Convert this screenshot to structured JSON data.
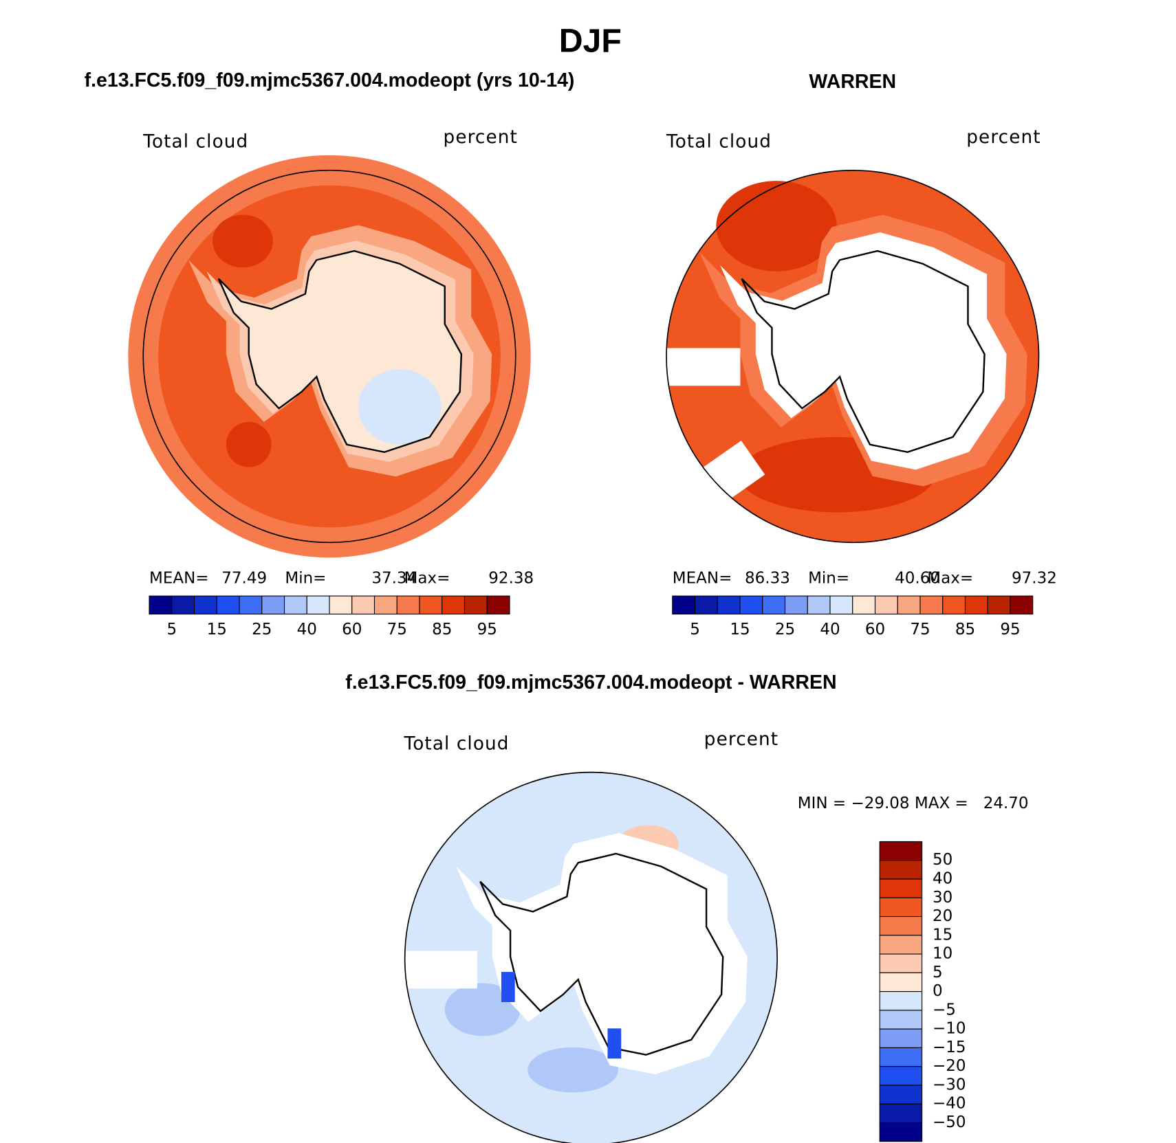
{
  "title": "DJF",
  "panels": [
    {
      "title": "f.e13.FC5.f09_f09.mjmc5367.004.modeopt (yrs 10-14)",
      "left_label": "Total cloud",
      "right_label": "percent",
      "stats": [
        {
          "label": "MEAN=",
          "value": "77.49"
        },
        {
          "label": "Min=",
          "value": "37.34"
        },
        {
          "label": "Max=",
          "value": "92.38"
        }
      ]
    },
    {
      "title": "WARREN",
      "left_label": "Total cloud",
      "right_label": "percent",
      "stats": [
        {
          "label": "MEAN=",
          "value": "86.33"
        },
        {
          "label": "Min=",
          "value": "40.60"
        },
        {
          "label": "Max=",
          "value": "97.32"
        }
      ]
    }
  ],
  "colorbar": {
    "colors": [
      "#00008b",
      "#0a1aa8",
      "#1033d0",
      "#1f4ff0",
      "#3d6ef5",
      "#7d9df5",
      "#b0c8f8",
      "#d6e6fb",
      "#fde8d6",
      "#fbcab0",
      "#f8a781",
      "#f67a4c",
      "#f0561f",
      "#de3608",
      "#b82400",
      "#8b0000"
    ],
    "labels": [
      "5",
      "15",
      "25",
      "40",
      "60",
      "75",
      "85",
      "95"
    ]
  },
  "difference": {
    "title": "f.e13.FC5.f09_f09.mjmc5367.004.modeopt - WARREN",
    "left_label": "Total cloud",
    "right_label": "percent",
    "stats": "MIN = −29.08 MAX =   24.70",
    "colorbar": {
      "colors": [
        "#8b0000",
        "#b82400",
        "#de3608",
        "#f0561f",
        "#f67a4c",
        "#f8a781",
        "#fbcab0",
        "#fde8d6",
        "#d6e6fb",
        "#b0c8f8",
        "#7d9df5",
        "#3d6ef5",
        "#1f4ff0",
        "#1033d0",
        "#0a1aa8",
        "#00008b"
      ],
      "labels": [
        "50",
        "40",
        "30",
        "20",
        "15",
        "10",
        "5",
        "0",
        "−5",
        "−10",
        "−15",
        "−20",
        "−30",
        "−40",
        "−50"
      ]
    }
  }
}
